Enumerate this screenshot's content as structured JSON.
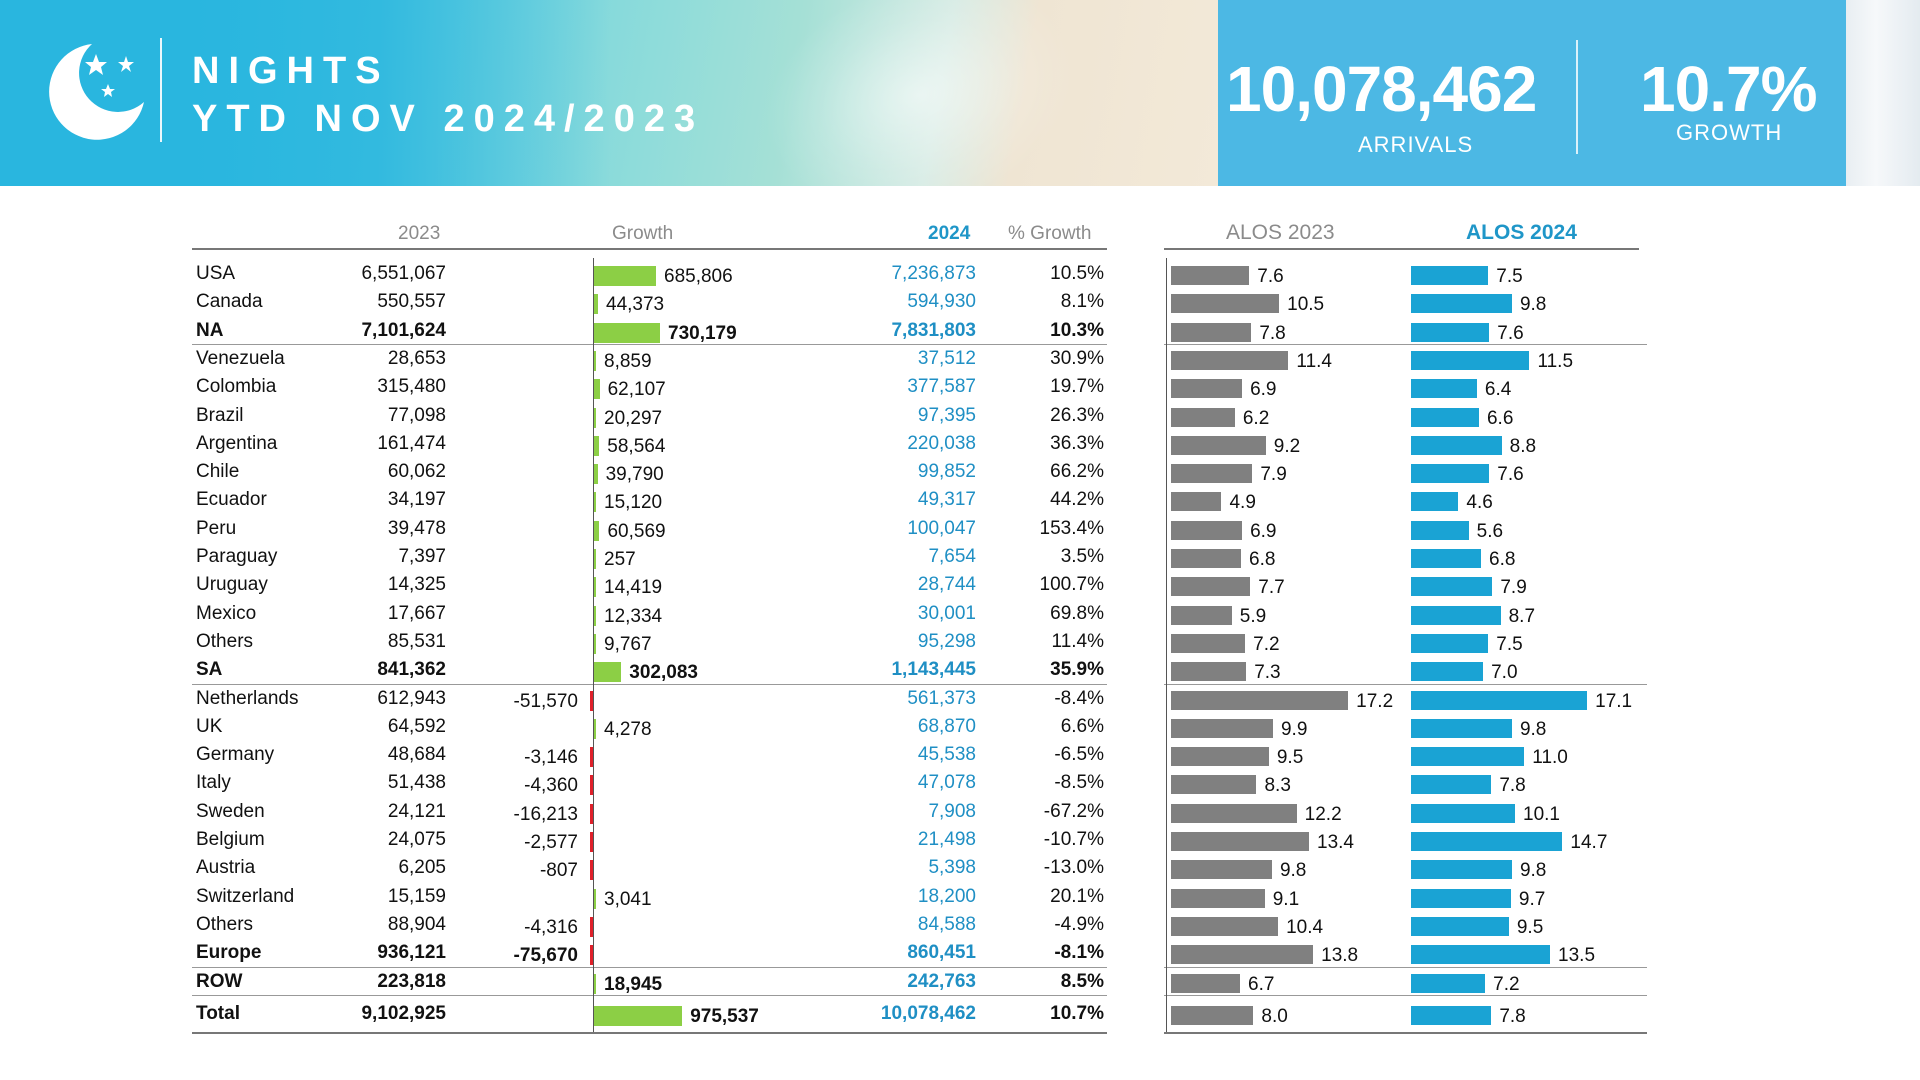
{
  "header": {
    "title_line1": "NIGHTS",
    "title_line2": "YTD NOV 2024/2023",
    "kpi_arrivals_value": "10,078,462",
    "kpi_arrivals_label": "ARRIVALS",
    "kpi_growth_value": "10.7%",
    "kpi_growth_label": "GROWTH"
  },
  "colors": {
    "banner_blue": "#29b6df",
    "growth_positive": "#8ccf45",
    "growth_negative": "#e0202a",
    "alos_2023": "#808080",
    "alos_2024": "#1aa3d4",
    "value_2024": "#1f8fc4"
  },
  "chart_data": {
    "type": "table",
    "columns": [
      "2023",
      "Growth",
      "2024",
      "% Growth",
      "ALOS 2023",
      "ALOS 2024"
    ],
    "rows": [
      {
        "name": "USA",
        "v2023": "6,551,067",
        "growth": "685,806",
        "g": 685806,
        "v2024": "7,236,873",
        "pct": "10.5%",
        "alos23": "7.6",
        "alos24": "7.5",
        "bold": false
      },
      {
        "name": "Canada",
        "v2023": "550,557",
        "growth": "44,373",
        "g": 44373,
        "v2024": "594,930",
        "pct": "8.1%",
        "alos23": "10.5",
        "alos24": "9.8",
        "bold": false
      },
      {
        "name": "NA",
        "v2023": "7,101,624",
        "growth": "730,179",
        "g": 730179,
        "v2024": "7,831,803",
        "pct": "10.3%",
        "alos23": "7.8",
        "alos24": "7.6",
        "bold": true
      },
      {
        "name": "Venezuela",
        "v2023": "28,653",
        "growth": "8,859",
        "g": 8859,
        "v2024": "37,512",
        "pct": "30.9%",
        "alos23": "11.4",
        "alos24": "11.5",
        "bold": false
      },
      {
        "name": "Colombia",
        "v2023": "315,480",
        "growth": "62,107",
        "g": 62107,
        "v2024": "377,587",
        "pct": "19.7%",
        "alos23": "6.9",
        "alos24": "6.4",
        "bold": false
      },
      {
        "name": "Brazil",
        "v2023": "77,098",
        "growth": "20,297",
        "g": 20297,
        "v2024": "97,395",
        "pct": "26.3%",
        "alos23": "6.2",
        "alos24": "6.6",
        "bold": false
      },
      {
        "name": "Argentina",
        "v2023": "161,474",
        "growth": "58,564",
        "g": 58564,
        "v2024": "220,038",
        "pct": "36.3%",
        "alos23": "9.2",
        "alos24": "8.8",
        "bold": false
      },
      {
        "name": "Chile",
        "v2023": "60,062",
        "growth": "39,790",
        "g": 39790,
        "v2024": "99,852",
        "pct": "66.2%",
        "alos23": "7.9",
        "alos24": "7.6",
        "bold": false
      },
      {
        "name": "Ecuador",
        "v2023": "34,197",
        "growth": "15,120",
        "g": 15120,
        "v2024": "49,317",
        "pct": "44.2%",
        "alos23": "4.9",
        "alos24": "4.6",
        "bold": false
      },
      {
        "name": "Peru",
        "v2023": "39,478",
        "growth": "60,569",
        "g": 60569,
        "v2024": "100,047",
        "pct": "153.4%",
        "alos23": "6.9",
        "alos24": "5.6",
        "bold": false
      },
      {
        "name": "Paraguay",
        "v2023": "7,397",
        "growth": "257",
        "g": 257,
        "v2024": "7,654",
        "pct": "3.5%",
        "alos23": "6.8",
        "alos24": "6.8",
        "bold": false
      },
      {
        "name": "Uruguay",
        "v2023": "14,325",
        "growth": "14,419",
        "g": 14419,
        "v2024": "28,744",
        "pct": "100.7%",
        "alos23": "7.7",
        "alos24": "7.9",
        "bold": false
      },
      {
        "name": "Mexico",
        "v2023": "17,667",
        "growth": "12,334",
        "g": 12334,
        "v2024": "30,001",
        "pct": "69.8%",
        "alos23": "5.9",
        "alos24": "8.7",
        "bold": false
      },
      {
        "name": "Others",
        "v2023": "85,531",
        "growth": "9,767",
        "g": 9767,
        "v2024": "95,298",
        "pct": "11.4%",
        "alos23": "7.2",
        "alos24": "7.5",
        "bold": false
      },
      {
        "name": "SA",
        "v2023": "841,362",
        "growth": "302,083",
        "g": 302083,
        "v2024": "1,143,445",
        "pct": "35.9%",
        "alos23": "7.3",
        "alos24": "7.0",
        "bold": true
      },
      {
        "name": "Netherlands",
        "v2023": "612,943",
        "growth": "-51,570",
        "g": -51570,
        "v2024": "561,373",
        "pct": "-8.4%",
        "alos23": "17.2",
        "alos24": "17.1",
        "bold": false
      },
      {
        "name": "UK",
        "v2023": "64,592",
        "growth": "4,278",
        "g": 4278,
        "v2024": "68,870",
        "pct": "6.6%",
        "alos23": "9.9",
        "alos24": "9.8",
        "bold": false
      },
      {
        "name": "Germany",
        "v2023": "48,684",
        "growth": "-3,146",
        "g": -3146,
        "v2024": "45,538",
        "pct": "-6.5%",
        "alos23": "9.5",
        "alos24": "11.0",
        "bold": false
      },
      {
        "name": "Italy",
        "v2023": "51,438",
        "growth": "-4,360",
        "g": -4360,
        "v2024": "47,078",
        "pct": "-8.5%",
        "alos23": "8.3",
        "alos24": "7.8",
        "bold": false
      },
      {
        "name": "Sweden",
        "v2023": "24,121",
        "growth": "-16,213",
        "g": -16213,
        "v2024": "7,908",
        "pct": "-67.2%",
        "alos23": "12.2",
        "alos24": "10.1",
        "bold": false
      },
      {
        "name": "Belgium",
        "v2023": "24,075",
        "growth": "-2,577",
        "g": -2577,
        "v2024": "21,498",
        "pct": "-10.7%",
        "alos23": "13.4",
        "alos24": "14.7",
        "bold": false
      },
      {
        "name": "Austria",
        "v2023": "6,205",
        "growth": "-807",
        "g": -807,
        "v2024": "5,398",
        "pct": "-13.0%",
        "alos23": "9.8",
        "alos24": "9.8",
        "bold": false
      },
      {
        "name": "Switzerland",
        "v2023": "15,159",
        "growth": "3,041",
        "g": 3041,
        "v2024": "18,200",
        "pct": "20.1%",
        "alos23": "9.1",
        "alos24": "9.7",
        "bold": false
      },
      {
        "name": "Others",
        "v2023": "88,904",
        "growth": "-4,316",
        "g": -4316,
        "v2024": "84,588",
        "pct": "-4.9%",
        "alos23": "10.4",
        "alos24": "9.5",
        "bold": false
      },
      {
        "name": "Europe",
        "v2023": "936,121",
        "growth": "-75,670",
        "g": -75670,
        "v2024": "860,451",
        "pct": "-8.1%",
        "alos23": "13.8",
        "alos24": "13.5",
        "bold": true
      },
      {
        "name": "ROW",
        "v2023": "223,818",
        "growth": "18,945",
        "g": 18945,
        "v2024": "242,763",
        "pct": "8.5%",
        "alos23": "6.7",
        "alos24": "7.2",
        "bold": true
      },
      {
        "name": "Total",
        "v2023": "9,102,925",
        "growth": "975,537",
        "g": 975537,
        "v2024": "10,078,462",
        "pct": "10.7%",
        "alos23": "8.0",
        "alos24": "7.8",
        "bold": true
      }
    ]
  }
}
